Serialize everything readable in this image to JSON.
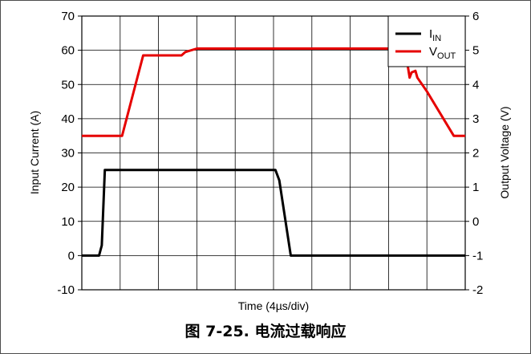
{
  "caption": "图 7-25. 电流过载响应",
  "chart_data": {
    "type": "line",
    "xlabel": "Time (4µs/div)",
    "ylabel_left": "Input Current (A)",
    "ylabel_right": "Output Voltage (V)",
    "ylim_left": [
      -10,
      70
    ],
    "ylim_right": [
      -2,
      6
    ],
    "yticks_left": [
      "70",
      "60",
      "50",
      "40",
      "30",
      "20",
      "10",
      "0",
      "-10"
    ],
    "yticks_right": [
      "6",
      "5",
      "4",
      "3",
      "2",
      "1",
      "0",
      "-1",
      "-2"
    ],
    "xlim": [
      0,
      10
    ],
    "x_divisions": 10,
    "grid": true,
    "legend_position": "top-right",
    "series": [
      {
        "name": "I",
        "name_sub": "IN",
        "axis": "left",
        "color": "#000000",
        "x": [
          0,
          0.45,
          0.52,
          0.6,
          5.05,
          5.15,
          5.45,
          10
        ],
        "y": [
          0,
          0,
          3,
          25,
          25,
          22,
          0,
          0
        ]
      },
      {
        "name": "V",
        "name_sub": "OUT",
        "axis": "right",
        "color": "#e60000",
        "x": [
          0,
          1.05,
          1.6,
          2.6,
          2.7,
          3.0,
          8.4,
          8.45,
          8.55,
          8.6,
          8.7,
          8.75,
          9.0,
          9.7,
          14
        ],
        "y": [
          2.5,
          2.5,
          4.85,
          4.85,
          4.95,
          5.05,
          5.05,
          4.9,
          4.2,
          4.35,
          4.4,
          4.2,
          3.8,
          2.5,
          2.5
        ]
      }
    ]
  }
}
